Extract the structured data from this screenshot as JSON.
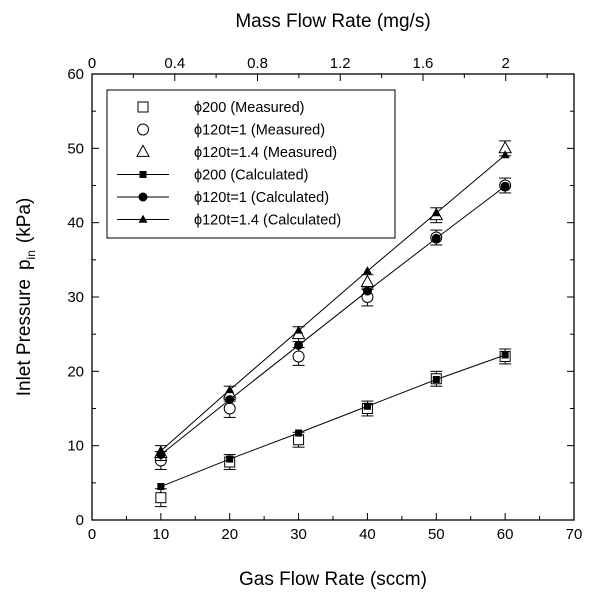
{
  "chart_data": {
    "type": "line",
    "xlabel": "Gas Flow Rate (sccm)",
    "ylabel": "Inlet Pressure",
    "ylabel_symbol": "p",
    "ylabel_subscript": "in",
    "ylabel_unit": "(kPa)",
    "x2label": "Mass Flow Rate (mg/s)",
    "xlim": [
      0,
      70
    ],
    "ylim": [
      0,
      60
    ],
    "x2lim": [
      0,
      2.33
    ],
    "xticks": [
      "0",
      "10",
      "20",
      "30",
      "40",
      "50",
      "60",
      "70"
    ],
    "yticks": [
      "0",
      "10",
      "20",
      "30",
      "40",
      "50",
      "60"
    ],
    "x2ticks": [
      "0",
      "0.4",
      "0.8",
      "1.2",
      "1.6",
      "2"
    ],
    "legend_position": "top-left",
    "grid": false,
    "series": [
      {
        "name": "ϕ200 (Measured)",
        "marker": "open-square",
        "x": [
          10,
          20,
          30,
          40,
          50,
          60
        ],
        "y": [
          3,
          7.8,
          10.8,
          15,
          19,
          22
        ],
        "err": [
          1.2,
          1.0,
          1.0,
          1.0,
          1.0,
          1.0
        ]
      },
      {
        "name": "ϕ120t=1 (Measured)",
        "marker": "open-circle",
        "x": [
          10,
          20,
          30,
          40,
          50,
          60
        ],
        "y": [
          8,
          15,
          22,
          30,
          38,
          45
        ],
        "err": [
          1.2,
          1.2,
          1.2,
          1.2,
          1.0,
          1.0
        ]
      },
      {
        "name": "ϕ120t=1.4 (Measured)",
        "marker": "open-triangle",
        "x": [
          10,
          20,
          30,
          40,
          50,
          60
        ],
        "y": [
          9,
          17,
          25,
          32,
          41,
          50
        ],
        "err": [
          1.0,
          1.0,
          1.0,
          1.0,
          1.0,
          1.0
        ]
      },
      {
        "name": "ϕ200 (Calculated)",
        "marker": "filled-square",
        "line": true,
        "x": [
          10,
          20,
          30,
          40,
          50,
          60
        ],
        "y": [
          4.5,
          8.2,
          11.7,
          15.3,
          18.9,
          22.2
        ]
      },
      {
        "name": "ϕ120t=1 (Calculated)",
        "marker": "filled-circle",
        "line": true,
        "x": [
          10,
          20,
          30,
          40,
          50,
          60
        ],
        "y": [
          8.8,
          16.2,
          23.5,
          30.8,
          37.9,
          44.9
        ]
      },
      {
        "name": "ϕ120t=1.4 (Calculated)",
        "marker": "filled-triangle",
        "line": true,
        "x": [
          10,
          20,
          30,
          40,
          50,
          60
        ],
        "y": [
          9.3,
          17.5,
          25.5,
          33.5,
          41.3,
          49.1
        ]
      }
    ]
  }
}
